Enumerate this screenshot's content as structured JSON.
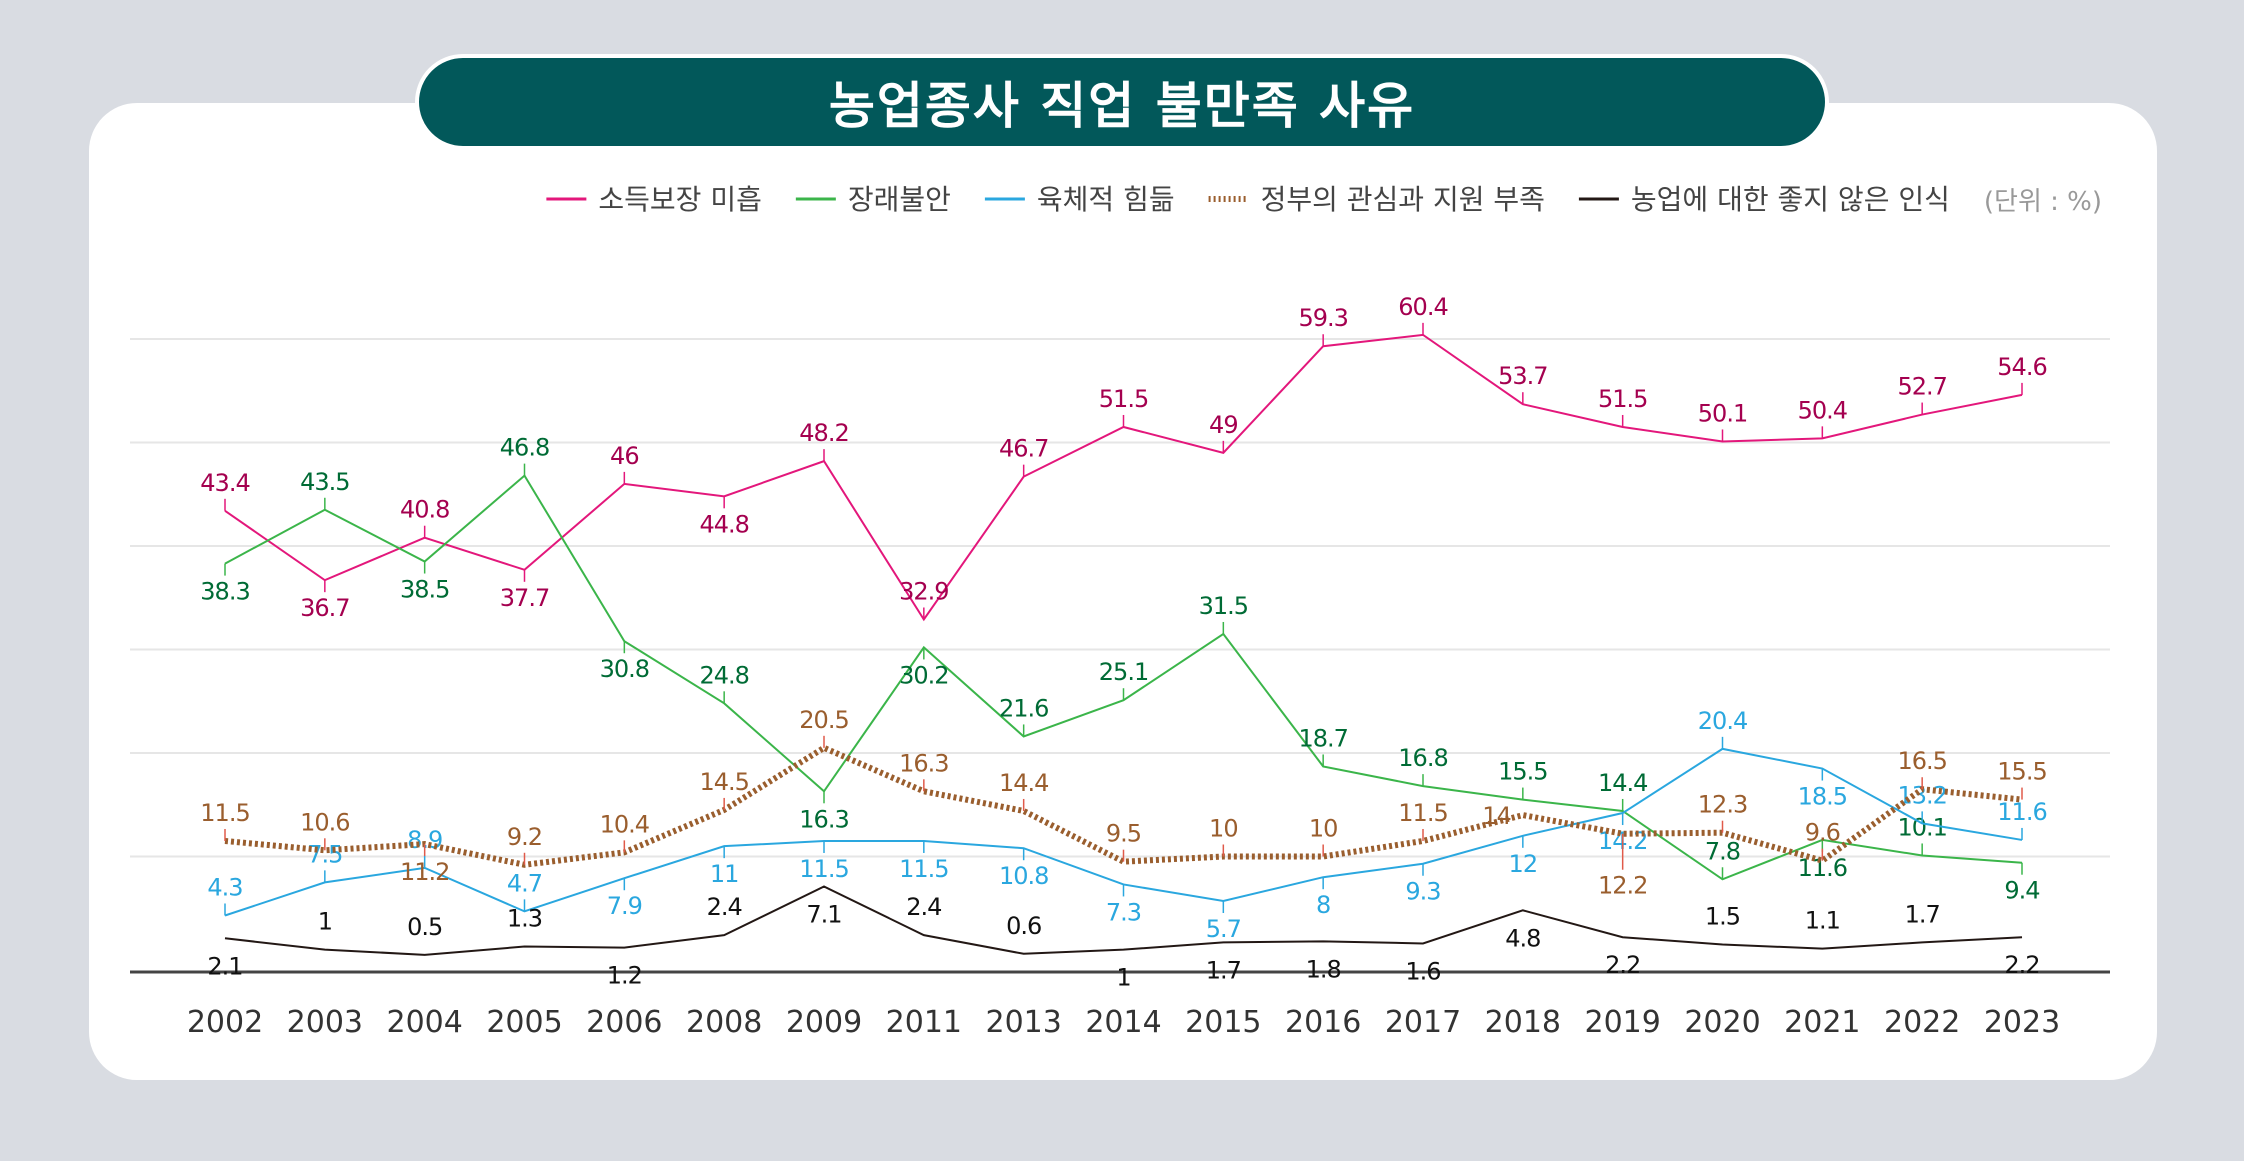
{
  "chart_data": {
    "type": "line",
    "title": "농업종사 직업 불만족 사유",
    "unit_label": "(단위 : %)",
    "xlabel": "",
    "ylabel": "",
    "legend_position": "top",
    "grid": true,
    "categories": [
      "2002",
      "2003",
      "2004",
      "2005",
      "2006",
      "2008",
      "2009",
      "2011",
      "2013",
      "2014",
      "2015",
      "2016",
      "2017",
      "2018",
      "2019",
      "2020",
      "2021",
      "2022",
      "2023"
    ],
    "series": [
      {
        "name": "소득보장 미흡",
        "color": "#e3177b",
        "label_color": "#a4004f",
        "style": "solid",
        "values": [
          43.4,
          36.7,
          40.8,
          37.7,
          46.0,
          44.8,
          48.2,
          32.9,
          46.7,
          51.5,
          49.0,
          59.3,
          60.4,
          53.7,
          51.5,
          50.1,
          50.4,
          52.7,
          54.6
        ]
      },
      {
        "name": "장래불안",
        "color": "#3bb54a",
        "label_color": "#006b35",
        "style": "solid",
        "values": [
          38.3,
          43.5,
          38.5,
          46.8,
          30.8,
          24.8,
          16.3,
          30.2,
          21.6,
          25.1,
          31.5,
          18.7,
          16.8,
          15.5,
          14.4,
          7.8,
          11.6,
          10.1,
          9.4
        ]
      },
      {
        "name": "육체적 힘듦",
        "color": "#2aa7df",
        "label_color": "#2aa7df",
        "style": "solid",
        "values": [
          4.3,
          7.5,
          8.9,
          4.7,
          7.9,
          11.0,
          11.5,
          11.5,
          10.8,
          7.3,
          5.7,
          8.0,
          9.3,
          12.0,
          14.2,
          20.4,
          18.5,
          13.2,
          11.6
        ]
      },
      {
        "name": "정부의 관심과 지원 부족",
        "color": "#9a5e2e",
        "label_color": "#9a5e2e",
        "style": "dotted",
        "values": [
          11.5,
          10.6,
          11.2,
          9.2,
          10.4,
          14.5,
          20.5,
          16.3,
          14.4,
          9.5,
          10.0,
          10.0,
          11.5,
          14.0,
          12.2,
          12.3,
          9.6,
          16.5,
          15.5
        ]
      },
      {
        "name": "농업에 대한 좋지 않은 인식",
        "color": "#231815",
        "label_color": "#111111",
        "style": "solid",
        "values": [
          2.1,
          1.0,
          0.5,
          1.3,
          1.2,
          2.4,
          7.1,
          2.4,
          0.6,
          1.0,
          1.7,
          1.8,
          1.6,
          4.8,
          2.2,
          1.5,
          1.1,
          1.7,
          2.2
        ]
      }
    ]
  }
}
